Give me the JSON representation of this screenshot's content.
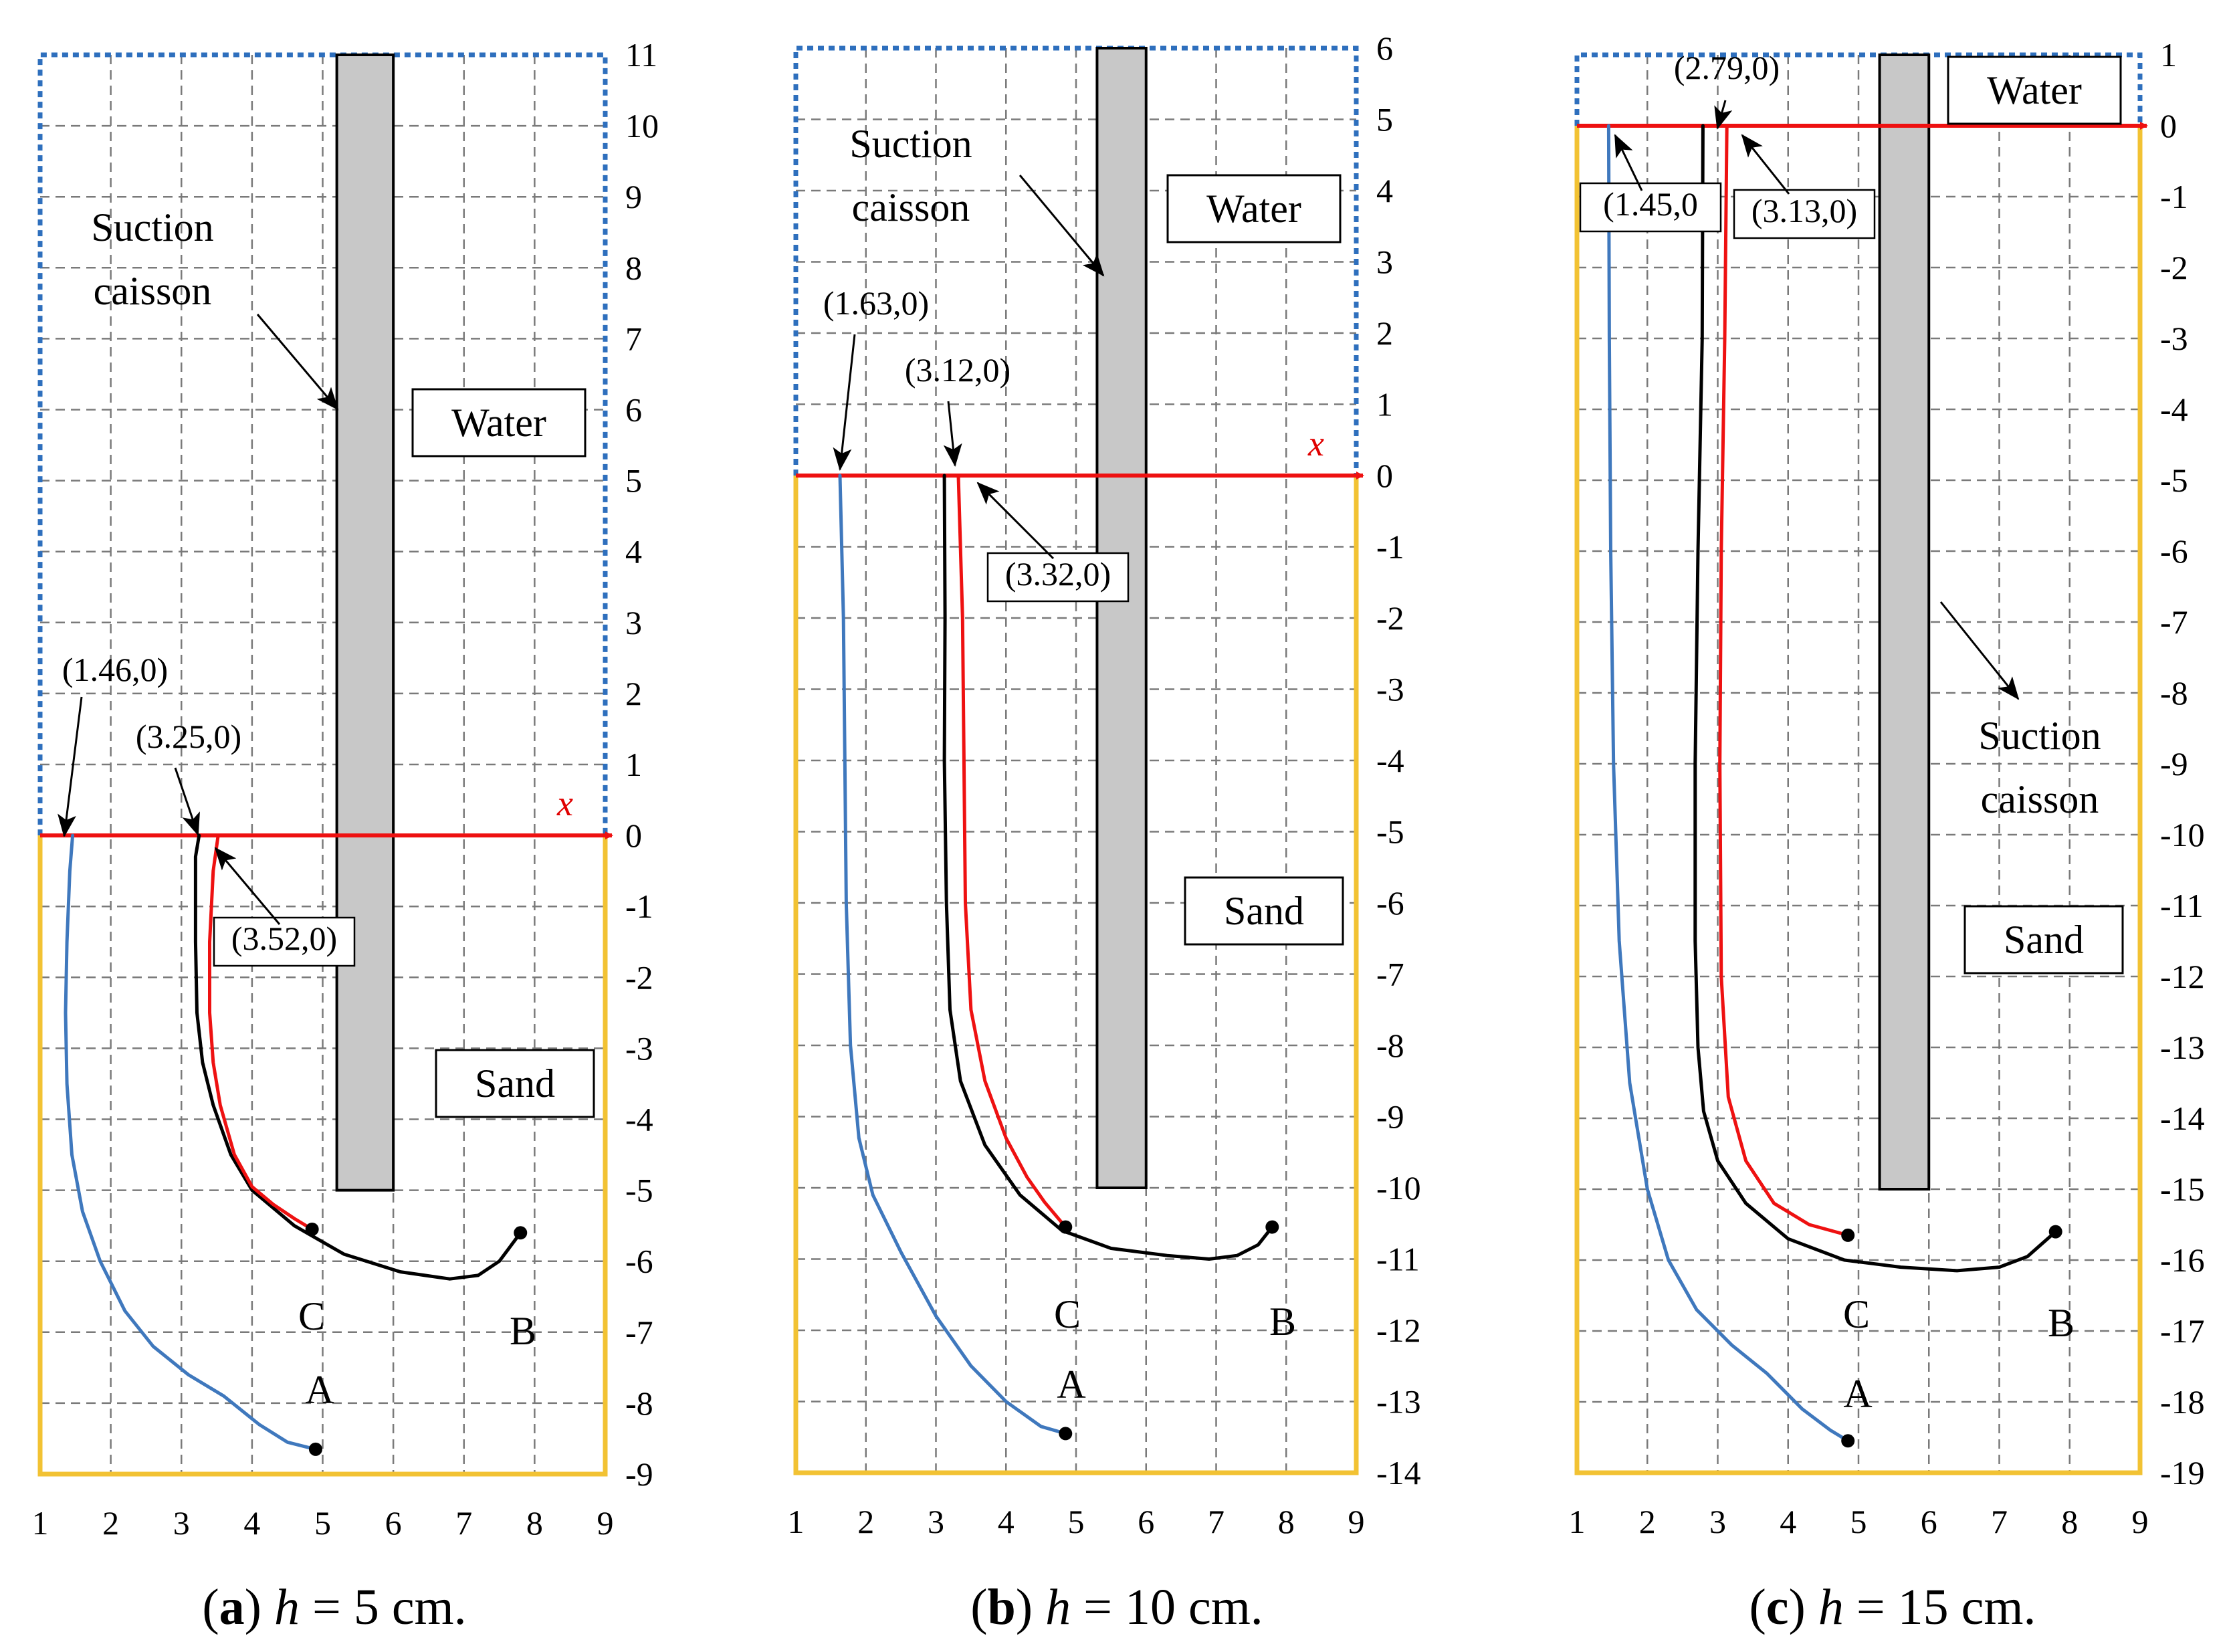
{
  "colors": {
    "path_A": "#3f78bd",
    "path_B": "#000000",
    "path_C": "#ee1111",
    "x_axis": "#ee1111",
    "water_border": "#2e6fbd",
    "sand_border": "#f2c233",
    "caisson_fill": "#c8c8c8"
  },
  "chart_data": [
    {
      "type": "line",
      "panel": "a",
      "caption_letter": "a",
      "caption_var": "h",
      "caption_rest": " = 5 cm.",
      "x_axis_name": "x",
      "xlim": [
        1,
        9
      ],
      "ylim": [
        -9,
        11
      ],
      "x_ticks": [
        "1",
        "2",
        "3",
        "4",
        "5",
        "6",
        "7",
        "8",
        "9"
      ],
      "y_ticks": [
        "-9",
        "-8",
        "-7",
        "-6",
        "-5",
        "-4",
        "-3",
        "-2",
        "-1",
        "0",
        "1",
        "2",
        "3",
        "4",
        "5",
        "6",
        "7",
        "8",
        "9",
        "10",
        "11"
      ],
      "caisson": {
        "x0": 5.2,
        "x1": 6.0,
        "y_top": 11,
        "y_bottom": -5
      },
      "labels": {
        "caisson": [
          "Suction",
          "caisson"
        ],
        "water": "Water",
        "sand": "Sand",
        "point_A": "A",
        "point_B": "B",
        "point_C": "C"
      },
      "annotations": [
        "(1.46,0)",
        "(3.25,0)",
        "(3.52,0)"
      ],
      "series": [
        {
          "name": "A",
          "x": [
            1.46,
            1.42,
            1.38,
            1.36,
            1.38,
            1.45,
            1.6,
            1.85,
            2.2,
            2.6,
            3.1,
            3.6,
            4.1,
            4.5,
            4.9
          ],
          "y": [
            0,
            -0.5,
            -1.5,
            -2.5,
            -3.5,
            -4.5,
            -5.3,
            -6.0,
            -6.7,
            -7.2,
            -7.6,
            -7.9,
            -8.3,
            -8.55,
            -8.65
          ]
        },
        {
          "name": "B",
          "x": [
            3.25,
            3.2,
            3.2,
            3.22,
            3.3,
            3.45,
            3.7,
            4.0,
            4.6,
            5.3,
            6.1,
            6.8,
            7.2,
            7.5,
            7.8
          ],
          "y": [
            0,
            -0.3,
            -1.5,
            -2.5,
            -3.2,
            -3.8,
            -4.5,
            -5.0,
            -5.5,
            -5.9,
            -6.15,
            -6.25,
            -6.2,
            -6.0,
            -5.6
          ]
        },
        {
          "name": "C",
          "x": [
            3.52,
            3.45,
            3.4,
            3.4,
            3.45,
            3.55,
            3.75,
            4.0,
            4.3,
            4.6,
            4.85
          ],
          "y": [
            0,
            -0.5,
            -1.5,
            -2.5,
            -3.2,
            -3.8,
            -4.5,
            -4.95,
            -5.2,
            -5.4,
            -5.55
          ]
        }
      ]
    },
    {
      "type": "line",
      "panel": "b",
      "caption_letter": "b",
      "caption_var": "h",
      "caption_rest": " = 10 cm.",
      "x_axis_name": "x",
      "xlim": [
        1,
        9
      ],
      "ylim": [
        -14,
        6
      ],
      "x_ticks": [
        "1",
        "2",
        "3",
        "4",
        "5",
        "6",
        "7",
        "8",
        "9"
      ],
      "y_ticks": [
        "-14",
        "-13",
        "-12",
        "-11",
        "-10",
        "-9",
        "-8",
        "-7",
        "-6",
        "-5",
        "-4",
        "-3",
        "-2",
        "-1",
        "0",
        "1",
        "2",
        "3",
        "4",
        "5",
        "6"
      ],
      "caisson": {
        "x0": 5.3,
        "x1": 6.0,
        "y_top": 6,
        "y_bottom": -10
      },
      "labels": {
        "caisson": [
          "Suction",
          "caisson"
        ],
        "water": "Water",
        "sand": "Sand",
        "point_A": "A",
        "point_B": "B",
        "point_C": "C"
      },
      "annotations": [
        "(1.63,0)",
        "(3.12,0)",
        "(3.32,0)"
      ],
      "series": [
        {
          "name": "A",
          "x": [
            1.63,
            1.68,
            1.7,
            1.72,
            1.78,
            1.9,
            2.1,
            2.5,
            3.0,
            3.5,
            4.0,
            4.5,
            4.85
          ],
          "y": [
            0,
            -2.0,
            -4.0,
            -6.0,
            -8.0,
            -9.3,
            -10.1,
            -10.9,
            -11.8,
            -12.5,
            -13.0,
            -13.35,
            -13.45
          ]
        },
        {
          "name": "B",
          "x": [
            3.12,
            3.13,
            3.12,
            3.15,
            3.2,
            3.35,
            3.7,
            4.2,
            4.8,
            5.5,
            6.3,
            6.9,
            7.3,
            7.6,
            7.8
          ],
          "y": [
            0,
            -2.0,
            -4.0,
            -6.0,
            -7.5,
            -8.5,
            -9.4,
            -10.1,
            -10.6,
            -10.85,
            -10.95,
            -11.0,
            -10.95,
            -10.8,
            -10.55
          ]
        },
        {
          "name": "C",
          "x": [
            3.32,
            3.38,
            3.4,
            3.42,
            3.5,
            3.7,
            4.0,
            4.3,
            4.55,
            4.85
          ],
          "y": [
            0,
            -2.0,
            -4.0,
            -6.0,
            -7.5,
            -8.5,
            -9.3,
            -9.85,
            -10.2,
            -10.55
          ]
        }
      ]
    },
    {
      "type": "line",
      "panel": "c",
      "caption_letter": "c",
      "caption_var": "h",
      "caption_rest": " = 15 cm.",
      "x_axis_name": "x",
      "xlim": [
        1,
        9
      ],
      "ylim": [
        -19,
        1
      ],
      "x_ticks": [
        "1",
        "2",
        "3",
        "4",
        "5",
        "6",
        "7",
        "8",
        "9"
      ],
      "y_ticks": [
        "-19",
        "-18",
        "-17",
        "-16",
        "-15",
        "-14",
        "-13",
        "-12",
        "-11",
        "-10",
        "-9",
        "-8",
        "-7",
        "-6",
        "-5",
        "-4",
        "-3",
        "-2",
        "-1",
        "0",
        "1"
      ],
      "caisson": {
        "x0": 5.3,
        "x1": 6.0,
        "y_top": 1,
        "y_bottom": -15
      },
      "labels": {
        "caisson": [
          "Suction",
          "caisson"
        ],
        "water": "Water",
        "sand": "Sand",
        "point_A": "A",
        "point_B": "B",
        "point_C": "C"
      },
      "annotations": [
        "(2.79,0)",
        "(1.45,0",
        "(3.13,0)"
      ],
      "series": [
        {
          "name": "A",
          "x": [
            1.45,
            1.46,
            1.48,
            1.52,
            1.6,
            1.75,
            2.0,
            2.3,
            2.7,
            3.2,
            3.7,
            4.2,
            4.6,
            4.85
          ],
          "y": [
            0,
            -3.0,
            -6.0,
            -9.0,
            -11.5,
            -13.5,
            -15.0,
            -16.0,
            -16.7,
            -17.2,
            -17.6,
            -18.1,
            -18.4,
            -18.55
          ]
        },
        {
          "name": "B",
          "x": [
            2.79,
            2.78,
            2.72,
            2.68,
            2.68,
            2.72,
            2.8,
            3.0,
            3.4,
            4.0,
            4.8,
            5.6,
            6.4,
            7.0,
            7.4,
            7.8
          ],
          "y": [
            0,
            -3.0,
            -6.0,
            -9.0,
            -11.5,
            -13.0,
            -13.9,
            -14.6,
            -15.2,
            -15.7,
            -16.0,
            -16.1,
            -16.15,
            -16.1,
            -15.95,
            -15.6
          ]
        },
        {
          "name": "C",
          "x": [
            3.13,
            3.1,
            3.05,
            3.03,
            3.05,
            3.15,
            3.4,
            3.8,
            4.3,
            4.85
          ],
          "y": [
            0,
            -3.0,
            -6.0,
            -9.0,
            -12.0,
            -13.7,
            -14.6,
            -15.2,
            -15.5,
            -15.65
          ]
        }
      ]
    }
  ]
}
